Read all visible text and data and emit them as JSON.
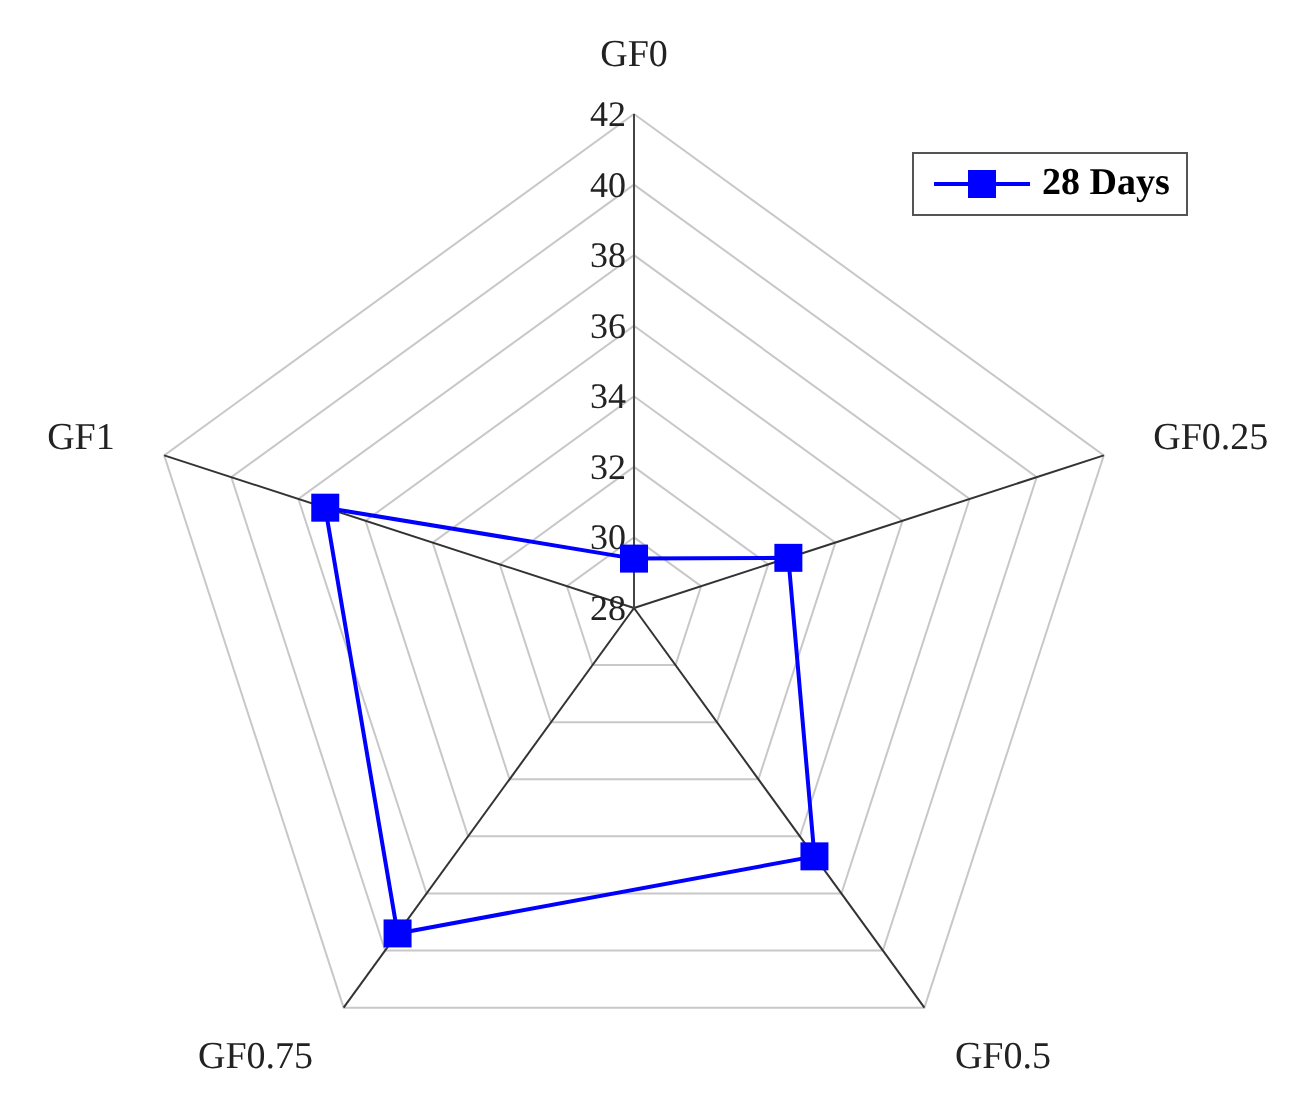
{
  "chart_data": {
    "type": "radar",
    "categories": [
      "GF0",
      "GF0.25",
      "GF0.5",
      "GF0.75",
      "GF1"
    ],
    "series": [
      {
        "name": "28 Days",
        "color": "#0000ff",
        "values": [
          29.4,
          32.6,
          36.7,
          39.4,
          37.2
        ]
      }
    ],
    "ylim": [
      28,
      42
    ],
    "yticks": [
      28,
      30,
      32,
      34,
      36,
      38,
      40,
      42
    ],
    "grid": true,
    "legend": "top right",
    "marker": "square",
    "line_style": "solid"
  }
}
